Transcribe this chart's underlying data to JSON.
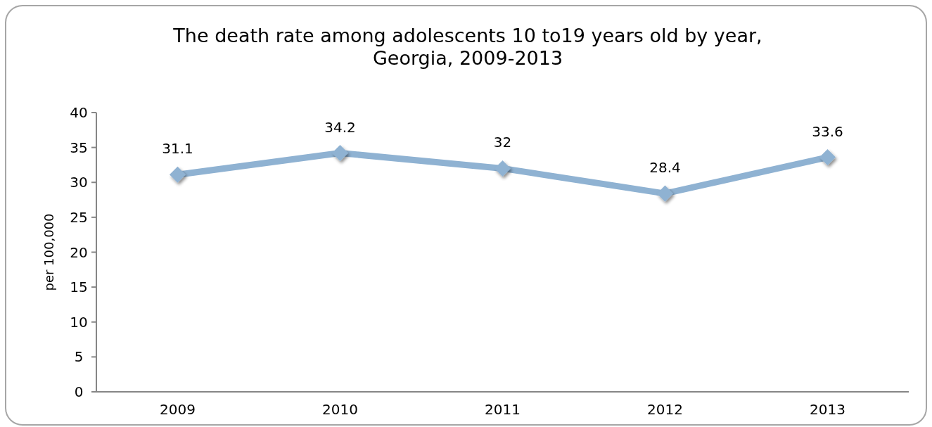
{
  "chart_data": {
    "type": "line",
    "title": "The death rate among adolescents 10 to19 years old by year,\nGeorgia, 2009-2013",
    "ylabel": "per 100,000",
    "categories": [
      "2009",
      "2010",
      "2011",
      "2012",
      "2013"
    ],
    "series": [
      {
        "color": "#8fb2d2",
        "values": [
          31.1,
          34.2,
          32,
          28.4,
          33.6
        ]
      }
    ],
    "ylim": [
      0,
      40
    ],
    "yticks": [
      0,
      5,
      10,
      15,
      20,
      25,
      30,
      35,
      40
    ],
    "data_labels": true,
    "marker": "diamond",
    "line_style": "solid",
    "grid": false
  }
}
